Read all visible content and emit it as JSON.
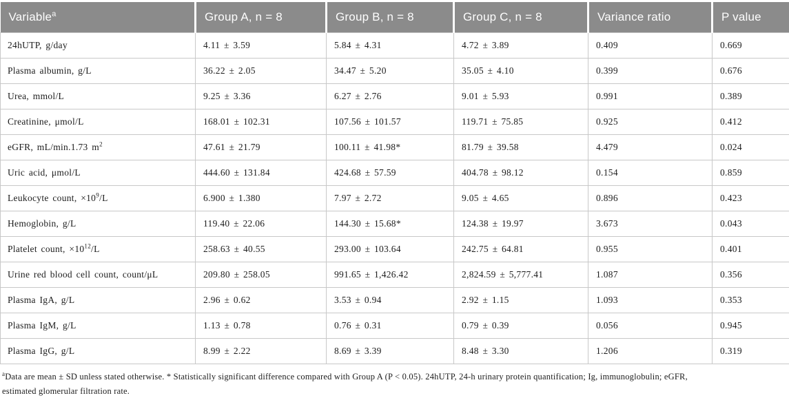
{
  "colors": {
    "header_bg": "#8b8b8b",
    "header_text": "#fdfdfd",
    "body_text": "#1c1c1c",
    "border": "#c8c8c8",
    "background": "#ffffff"
  },
  "table": {
    "columns": [
      {
        "id": "variable",
        "html": "Variable<sup>a</sup>"
      },
      {
        "id": "group_a",
        "html": "Group A, n = 8"
      },
      {
        "id": "group_b",
        "html": "Group B, n = 8"
      },
      {
        "id": "group_c",
        "html": "Group C, n = 8"
      },
      {
        "id": "variance_ratio",
        "html": "Variance ratio"
      },
      {
        "id": "p_value",
        "html": "P value"
      }
    ],
    "rows": [
      {
        "variable_html": "24hUTP, g/day",
        "group_a": "4.11 ± 3.59",
        "group_b": "5.84 ± 4.31",
        "group_c": "4.72 ± 3.89",
        "variance_ratio": "0.409",
        "p_value": "0.669"
      },
      {
        "variable_html": "Plasma albumin, g/L",
        "group_a": "36.22 ± 2.05",
        "group_b": "34.47 ± 5.20",
        "group_c": "35.05 ± 4.10",
        "variance_ratio": "0.399",
        "p_value": "0.676"
      },
      {
        "variable_html": "Urea, mmol/L",
        "group_a": "9.25 ± 3.36",
        "group_b": "6.27 ± 2.76",
        "group_c": "9.01 ± 5.93",
        "variance_ratio": "0.991",
        "p_value": "0.389"
      },
      {
        "variable_html": "Creatinine, μmol/L",
        "group_a": "168.01 ± 102.31",
        "group_b": "107.56 ± 101.57",
        "group_c": "119.71 ± 75.85",
        "variance_ratio": "0.925",
        "p_value": "0.412"
      },
      {
        "variable_html": "eGFR, mL/min.1.73 m<sup>2</sup>",
        "group_a": "47.61 ± 21.79",
        "group_b": "100.11 ± 41.98*",
        "group_c": "81.79 ± 39.58",
        "variance_ratio": "4.479",
        "p_value": "0.024"
      },
      {
        "variable_html": "Uric acid, μmol/L",
        "group_a": "444.60 ± 131.84",
        "group_b": "424.68 ± 57.59",
        "group_c": "404.78 ± 98.12",
        "variance_ratio": "0.154",
        "p_value": "0.859"
      },
      {
        "variable_html": "Leukocyte count, ×10<sup>9</sup>/L",
        "group_a": "6.900 ± 1.380",
        "group_b": "7.97 ± 2.72",
        "group_c": "9.05 ± 4.65",
        "variance_ratio": "0.896",
        "p_value": "0.423"
      },
      {
        "variable_html": "Hemoglobin, g/L",
        "group_a": "119.40 ± 22.06",
        "group_b": "144.30 ± 15.68*",
        "group_c": "124.38 ± 19.97",
        "variance_ratio": "3.673",
        "p_value": "0.043"
      },
      {
        "variable_html": "Platelet count, ×10<sup>12</sup>/L",
        "group_a": "258.63 ± 40.55",
        "group_b": "293.00 ± 103.64",
        "group_c": "242.75 ± 64.81",
        "variance_ratio": "0.955",
        "p_value": "0.401"
      },
      {
        "variable_html": "Urine red blood cell count, count/μL",
        "group_a": "209.80 ± 258.05",
        "group_b": "991.65 ± 1,426.42",
        "group_c": "2,824.59 ± 5,777.41",
        "variance_ratio": "1.087",
        "p_value": "0.356"
      },
      {
        "variable_html": "Plasma IgA, g/L",
        "group_a": "2.96 ± 0.62",
        "group_b": "3.53 ± 0.94",
        "group_c": "2.92 ± 1.15",
        "variance_ratio": "1.093",
        "p_value": "0.353"
      },
      {
        "variable_html": "Plasma IgM, g/L",
        "group_a": "1.13 ± 0.78",
        "group_b": "0.76 ± 0.31",
        "group_c": "0.79 ± 0.39",
        "variance_ratio": "0.056",
        "p_value": "0.945"
      },
      {
        "variable_html": "Plasma IgG, g/L",
        "group_a": "8.99 ± 2.22",
        "group_b": "8.69 ± 3.39",
        "group_c": "8.48 ± 3.30",
        "variance_ratio": "1.206",
        "p_value": "0.319"
      }
    ]
  },
  "footnote": {
    "line1_html": "<sup>a</sup>Data are mean ± SD unless stated otherwise. * Statistically significant difference compared with Group A (P &lt; 0.05). 24hUTP, 24-h urinary protein quantification; Ig, immunoglobulin; eGFR,",
    "line2": "estimated glomerular filtration rate."
  }
}
